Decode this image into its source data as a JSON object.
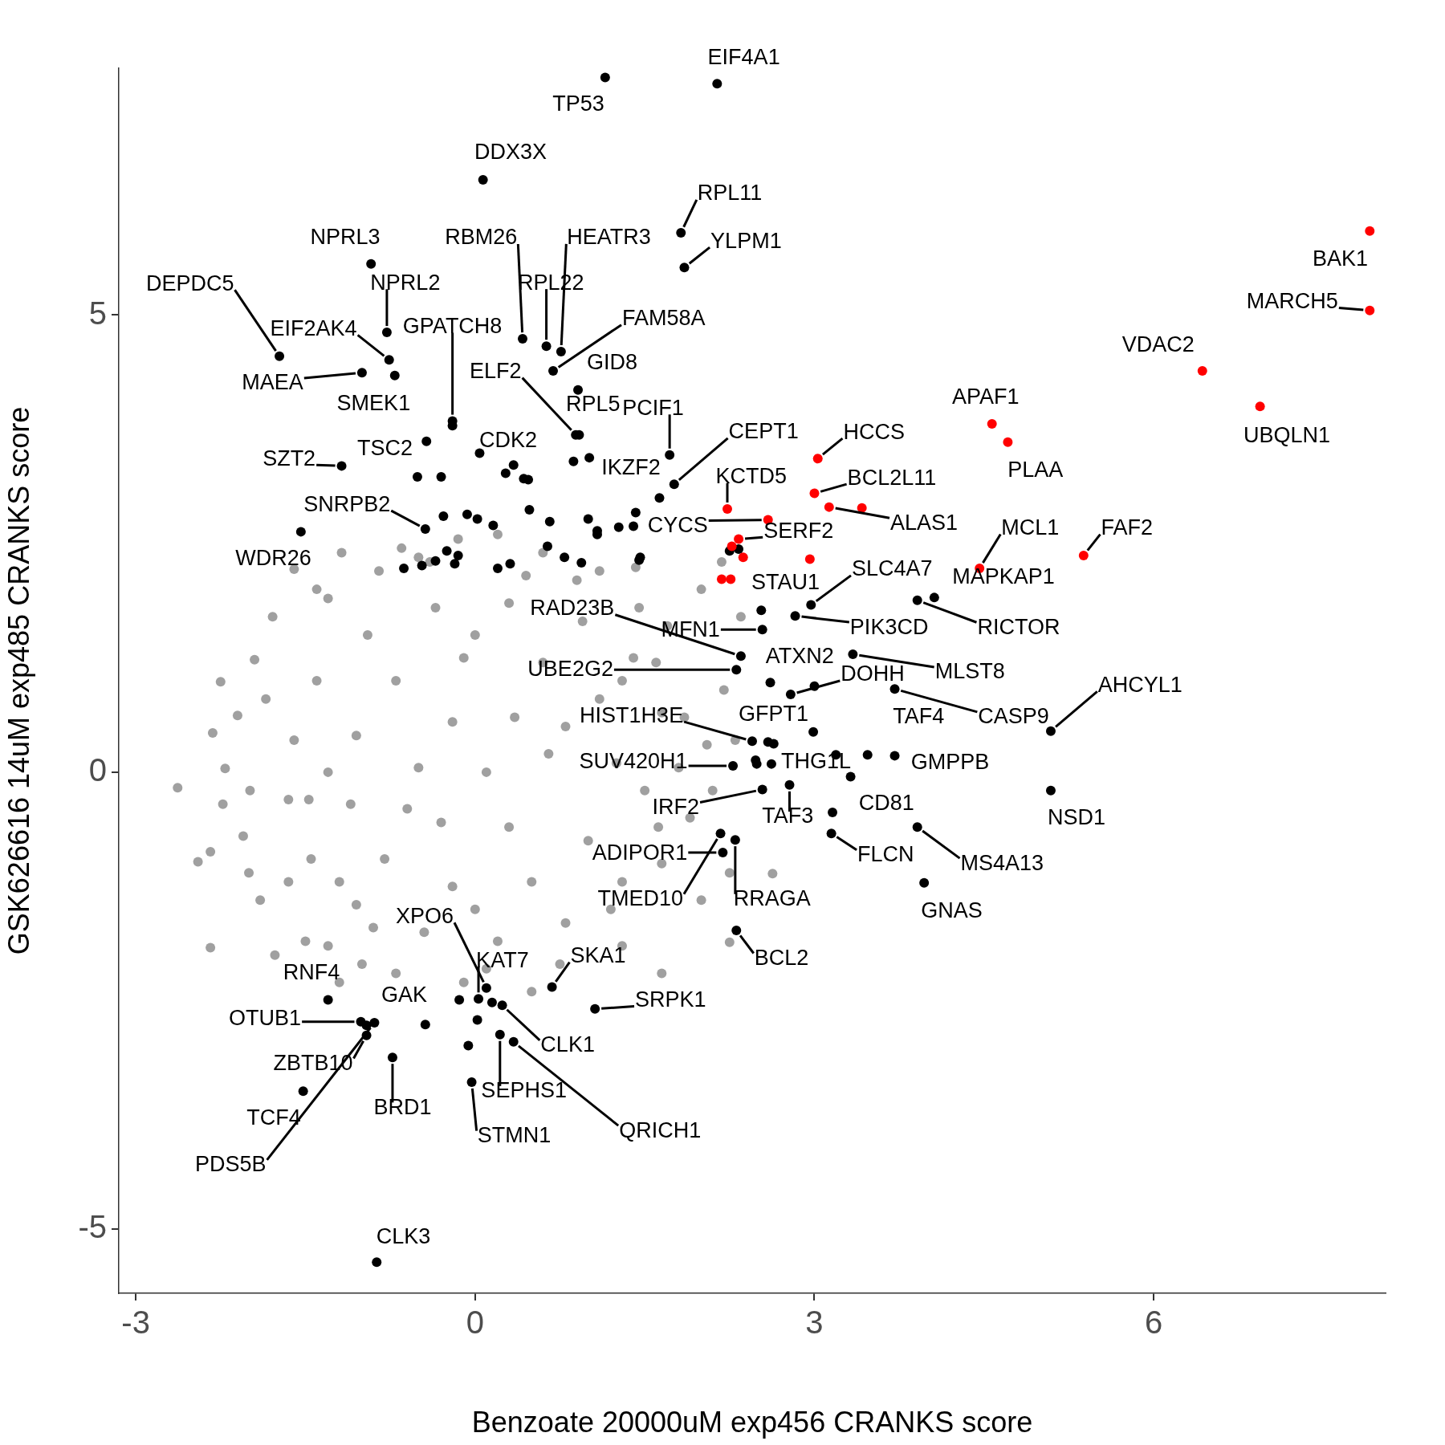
{
  "chart_data": {
    "type": "scatter",
    "xlabel": "Benzoate 20000uM exp456 CRANKS score",
    "ylabel": "GSK626616 14uM exp485 CRANKS score",
    "xlim": [
      -3.15,
      8.05
    ],
    "ylim": [
      -5.7,
      7.7
    ],
    "xticks": [
      -3,
      0,
      3,
      6
    ],
    "yticks": [
      -5,
      0,
      5
    ],
    "grid": false,
    "legend": false,
    "marker": "circle",
    "series": [
      {
        "color": "#a0a0a0",
        "x": [
          -2.63,
          -2.45,
          -2.34,
          -2.34,
          -2.25,
          -2.21,
          -2.23,
          -2.1,
          -2.05,
          -1.95,
          -1.85,
          -1.9,
          -1.79,
          -1.77,
          -1.6,
          -1.5,
          -1.47,
          -1.3,
          -1.4,
          -1.2,
          -1.18,
          -1.0,
          -0.85,
          -0.7,
          -0.65,
          -0.5,
          -0.15,
          -0.1,
          0.2,
          0.45,
          0.5,
          0.75,
          0.9,
          1.1,
          1.2,
          1.45,
          1.6,
          1.65,
          1.65,
          1.85,
          1.9,
          2.05,
          2.1,
          2.25,
          2.25,
          2.3,
          2.35,
          2.63,
          1.42,
          2.18,
          2.0,
          -2.32,
          -1.99,
          -1.65,
          -2.0,
          -1.3,
          0.1,
          -0.4,
          1.3,
          2.0,
          2.2,
          1.7,
          0.6,
          -0.9,
          1.8,
          1.65,
          1.4,
          0.95,
          0.3,
          -0.35,
          -0.95,
          -1.4,
          -1.6,
          -1.65,
          -1.45,
          -1.05,
          -0.45,
          0.2,
          0.8,
          1.3,
          1.62,
          1.25,
          1.1,
          0.6,
          -0.1,
          -0.7,
          -1.05,
          -1.1,
          -0.8,
          -0.2,
          0.5,
          1.0,
          0.65,
          0.35,
          -0.2,
          -0.5,
          -0.3,
          0.3,
          0.1,
          1.5,
          -1.3,
          0.0,
          0.0,
          0.8,
          -0.6,
          1.3,
          -1.2
        ],
        "values": [
          -0.17,
          -0.98,
          -0.87,
          -1.92,
          0.99,
          0.04,
          -0.35,
          0.62,
          -0.7,
          1.23,
          0.8,
          -1.4,
          1.7,
          -2.0,
          2.22,
          -1.85,
          -0.3,
          1.9,
          2.0,
          -2.3,
          2.4,
          -2.1,
          2.2,
          -2.2,
          2.45,
          2.35,
          2.55,
          -2.3,
          2.6,
          2.15,
          -2.4,
          -2.1,
          2.1,
          2.2,
          -1.5,
          1.8,
          1.2,
          -1.0,
          -2.2,
          0.6,
          -0.5,
          0.3,
          -0.2,
          -1.1,
          -1.86,
          0.35,
          1.7,
          -1.11,
          2.24,
          2.3,
          2.0,
          0.43,
          -0.2,
          -1.2,
          -1.1,
          -1.9,
          -2.15,
          2.3,
          -1.9,
          -1.4,
          0.9,
          1.6,
          2.4,
          -1.7,
          0.05,
          0.65,
          1.25,
          1.65,
          1.85,
          1.8,
          1.5,
          1.0,
          0.35,
          -0.3,
          -0.95,
          -1.45,
          -1.75,
          -1.85,
          -1.65,
          -1.2,
          -0.6,
          0.1,
          0.8,
          1.2,
          1.25,
          1.0,
          0.4,
          -0.35,
          -0.95,
          -1.25,
          -1.2,
          -0.75,
          0.2,
          0.6,
          0.55,
          0.05,
          -0.55,
          -0.6,
          0.0,
          -0.2,
          0.0,
          -1.5,
          1.5,
          0.5,
          -0.4,
          1.0,
          -1.2
        ]
      },
      {
        "color": "#000000",
        "x": [
          1.15,
          2.14,
          0.07,
          1.82,
          1.85,
          -0.92,
          -0.78,
          -1.73,
          -1.0,
          -0.76,
          -0.71,
          0.42,
          0.63,
          0.76,
          0.69,
          0.91,
          -0.2,
          -0.2,
          -0.43,
          -1.18,
          0.04,
          0.89,
          0.92,
          0.87,
          1.01,
          1.72,
          -0.51,
          -0.3,
          0.27,
          0.34,
          0.43,
          0.47,
          1.63,
          1.76,
          -1.54,
          -0.44,
          -0.28,
          -0.07,
          0.02,
          0.16,
          0.48,
          0.66,
          1.0,
          1.08,
          1.08,
          1.27,
          1.42,
          1.4,
          -0.63,
          -0.47,
          -0.35,
          -0.25,
          -0.15,
          -0.18,
          0.2,
          0.31,
          0.64,
          0.79,
          0.94,
          1.46,
          1.45,
          2.25,
          2.33,
          3.91,
          4.06,
          2.97,
          2.53,
          2.83,
          2.54,
          2.35,
          2.31,
          2.61,
          2.79,
          3.0,
          3.34,
          3.71,
          2.99,
          5.09,
          2.45,
          2.59,
          2.64,
          3.19,
          3.47,
          3.71,
          3.32,
          2.28,
          2.48,
          2.49,
          2.62,
          2.54,
          2.78,
          5.09,
          3.16,
          3.15,
          3.91,
          3.97,
          2.17,
          2.19,
          2.3,
          2.31,
          -1.3,
          -1.01,
          -0.96,
          -0.89,
          -0.96,
          -0.44,
          -0.73,
          -1.52,
          -0.14,
          0.03,
          0.1,
          0.15,
          0.24,
          0.02,
          -0.06,
          0.22,
          0.34,
          0.68,
          1.06,
          -0.03,
          -0.87
        ],
        "values": [
          7.6,
          7.53,
          6.48,
          5.9,
          5.52,
          5.56,
          4.81,
          4.55,
          4.37,
          4.51,
          4.34,
          4.74,
          4.66,
          4.6,
          4.39,
          4.18,
          3.84,
          3.79,
          3.62,
          3.35,
          3.49,
          3.69,
          3.69,
          3.4,
          3.44,
          3.47,
          3.23,
          3.23,
          3.27,
          3.36,
          3.21,
          3.2,
          3.0,
          3.15,
          2.63,
          2.66,
          2.8,
          2.82,
          2.77,
          2.7,
          2.87,
          2.74,
          2.77,
          2.6,
          2.64,
          2.68,
          2.84,
          2.69,
          2.23,
          2.26,
          2.31,
          2.42,
          2.37,
          2.28,
          2.23,
          2.28,
          2.47,
          2.35,
          2.29,
          2.35,
          2.32,
          2.42,
          2.44,
          1.88,
          1.91,
          1.83,
          1.77,
          1.71,
          1.56,
          1.27,
          1.12,
          0.98,
          0.85,
          0.94,
          1.29,
          0.91,
          0.44,
          0.45,
          0.34,
          0.33,
          0.31,
          0.19,
          0.19,
          0.18,
          -0.05,
          0.07,
          0.13,
          0.09,
          0.09,
          -0.19,
          -0.14,
          -0.2,
          -0.44,
          -0.67,
          -0.6,
          -1.21,
          -0.67,
          -0.88,
          -0.74,
          -1.73,
          -2.49,
          -2.73,
          -2.77,
          -2.74,
          -2.88,
          -2.76,
          -3.12,
          -3.49,
          -2.49,
          -2.48,
          -2.36,
          -2.52,
          -2.55,
          -2.71,
          -2.99,
          -2.87,
          -2.95,
          -2.35,
          -2.59,
          -3.39,
          -5.36
        ]
      },
      {
        "color": "#ff0000",
        "x": [
          7.91,
          7.91,
          6.43,
          6.94,
          4.57,
          4.71,
          5.38,
          4.46,
          3.03,
          3.0,
          3.13,
          3.42,
          2.23,
          2.59,
          2.33,
          2.27,
          2.37,
          2.96,
          2.18,
          2.26
        ],
        "values": [
          5.92,
          5.05,
          4.39,
          4.0,
          3.81,
          3.61,
          2.37,
          2.23,
          3.43,
          3.05,
          2.9,
          2.89,
          2.88,
          2.76,
          2.55,
          2.47,
          2.35,
          2.33,
          2.11,
          2.11
        ]
      }
    ],
    "annotations": [
      {
        "text": "EIF4A1",
        "x": 2.14,
        "y": 7.53
      },
      {
        "text": "TP53",
        "x": 1.15,
        "y": 7.6
      },
      {
        "text": "DDX3X",
        "x": 0.07,
        "y": 6.48
      },
      {
        "text": "RPL11",
        "x": 1.82,
        "y": 5.9
      },
      {
        "text": "YLPM1",
        "x": 1.85,
        "y": 5.52
      },
      {
        "text": "NPRL3",
        "x": -0.92,
        "y": 5.56
      },
      {
        "text": "RBM26",
        "x": 0.42,
        "y": 4.74
      },
      {
        "text": "HEATR3",
        "x": 0.76,
        "y": 4.6
      },
      {
        "text": "DEPDC5",
        "x": -1.73,
        "y": 4.55
      },
      {
        "text": "NPRL2",
        "x": -0.78,
        "y": 4.81
      },
      {
        "text": "RPL22",
        "x": 0.63,
        "y": 4.66
      },
      {
        "text": "FAM58A",
        "x": 0.69,
        "y": 4.39
      },
      {
        "text": "EIF2AK4",
        "x": -0.76,
        "y": 4.51
      },
      {
        "text": "GPATCH8",
        "x": -0.2,
        "y": 3.84
      },
      {
        "text": "GID8",
        "x": 0.91,
        "y": 4.18
      },
      {
        "text": "ELF2",
        "x": 0.89,
        "y": 3.69
      },
      {
        "text": "MAEA",
        "x": -1.0,
        "y": 4.37
      },
      {
        "text": "SMEK1",
        "x": -0.71,
        "y": 4.34
      },
      {
        "text": "RPL5",
        "x": 0.92,
        "y": 3.69
      },
      {
        "text": "PCIF1",
        "x": 1.72,
        "y": 3.47
      },
      {
        "text": "CEPT1",
        "x": 1.76,
        "y": 3.15
      },
      {
        "text": "HCCS",
        "x": 3.03,
        "y": 3.43
      },
      {
        "text": "CDK2",
        "x": 0.04,
        "y": 3.49
      },
      {
        "text": "TSC2",
        "x": -0.43,
        "y": 3.62
      },
      {
        "text": "SZT2",
        "x": -1.18,
        "y": 3.35
      },
      {
        "text": "IKZF2",
        "x": 1.63,
        "y": 3.0
      },
      {
        "text": "KCTD5",
        "x": 2.23,
        "y": 2.88
      },
      {
        "text": "BCL2L11",
        "x": 3.0,
        "y": 3.05
      },
      {
        "text": "SNRPB2",
        "x": -0.44,
        "y": 2.66
      },
      {
        "text": "ALAS1",
        "x": 3.13,
        "y": 2.9
      },
      {
        "text": "CYCS",
        "x": 2.59,
        "y": 2.76
      },
      {
        "text": "SERF2",
        "x": 2.33,
        "y": 2.55
      },
      {
        "text": "MCL1",
        "x": 4.46,
        "y": 2.23
      },
      {
        "text": "FAF2",
        "x": 5.38,
        "y": 2.37
      },
      {
        "text": "WDR26",
        "x": -1.54,
        "y": 2.63
      },
      {
        "text": "SLC4A7",
        "x": 2.97,
        "y": 1.83
      },
      {
        "text": "MAPKAP1",
        "x": 4.06,
        "y": 1.91
      },
      {
        "text": "STAU1",
        "x": 2.37,
        "y": 2.35
      },
      {
        "text": "RAD23B",
        "x": 2.35,
        "y": 1.27
      },
      {
        "text": "RICTOR",
        "x": 3.91,
        "y": 1.88
      },
      {
        "text": "PIK3CD",
        "x": 2.83,
        "y": 1.71
      },
      {
        "text": "MFN1",
        "x": 2.54,
        "y": 1.56
      },
      {
        "text": "ATXN2",
        "x": 2.61,
        "y": 0.98
      },
      {
        "text": "DOHH",
        "x": 2.79,
        "y": 0.85
      },
      {
        "text": "MLST8",
        "x": 3.34,
        "y": 1.29
      },
      {
        "text": "UBE2G2",
        "x": 2.31,
        "y": 1.12
      },
      {
        "text": "AHCYL1",
        "x": 5.09,
        "y": 0.45
      },
      {
        "text": "HIST1H3E",
        "x": 2.45,
        "y": 0.34
      },
      {
        "text": "GFPT1",
        "x": 2.59,
        "y": 0.33
      },
      {
        "text": "TAF4",
        "x": 3.71,
        "y": 0.91
      },
      {
        "text": "CASP9",
        "x": 3.71,
        "y": 0.91
      },
      {
        "text": "SUV420H1",
        "x": 2.28,
        "y": 0.07
      },
      {
        "text": "THG1L",
        "x": 2.64,
        "y": 0.31
      },
      {
        "text": "GMPPB",
        "x": 3.71,
        "y": 0.18
      },
      {
        "text": "IRF2",
        "x": 2.54,
        "y": -0.19
      },
      {
        "text": "CD81",
        "x": 3.32,
        "y": -0.05
      },
      {
        "text": "TAF3",
        "x": 2.78,
        "y": -0.14
      },
      {
        "text": "NSD1",
        "x": 5.09,
        "y": -0.2
      },
      {
        "text": "ADIPOR1",
        "x": 2.19,
        "y": -0.88
      },
      {
        "text": "FLCN",
        "x": 3.15,
        "y": -0.67
      },
      {
        "text": "MS4A13",
        "x": 3.91,
        "y": -0.6
      },
      {
        "text": "RRAGA",
        "x": 2.3,
        "y": -0.74
      },
      {
        "text": "TMED10",
        "x": 2.17,
        "y": -0.67
      },
      {
        "text": "GNAS",
        "x": 3.97,
        "y": -1.21
      },
      {
        "text": "XPO6",
        "x": 0.1,
        "y": -2.36
      },
      {
        "text": "SKA1",
        "x": 0.68,
        "y": -2.35
      },
      {
        "text": "BCL2",
        "x": 2.31,
        "y": -1.73
      },
      {
        "text": "KAT7",
        "x": 0.03,
        "y": -2.48
      },
      {
        "text": "RNF4",
        "x": -1.3,
        "y": -2.49
      },
      {
        "text": "GAK",
        "x": -0.44,
        "y": -2.76
      },
      {
        "text": "SRPK1",
        "x": 1.06,
        "y": -2.59
      },
      {
        "text": "OTUB1",
        "x": -1.01,
        "y": -2.73
      },
      {
        "text": "CLK1",
        "x": 0.24,
        "y": -2.55
      },
      {
        "text": "ZBTB10",
        "x": -0.96,
        "y": -2.88
      },
      {
        "text": "SEPHS1",
        "x": 0.22,
        "y": -2.87
      },
      {
        "text": "BRD1",
        "x": -0.73,
        "y": -3.12
      },
      {
        "text": "TCF4",
        "x": -1.52,
        "y": -3.49
      },
      {
        "text": "QRICH1",
        "x": 0.34,
        "y": -2.95
      },
      {
        "text": "STMN1",
        "x": -0.03,
        "y": -3.39
      },
      {
        "text": "PDS5B",
        "x": -0.89,
        "y": -2.74
      },
      {
        "text": "CLK3",
        "x": -0.87,
        "y": -5.36
      },
      {
        "text": "BAK1",
        "x": 7.91,
        "y": 5.92
      },
      {
        "text": "MARCH5",
        "x": 7.91,
        "y": 5.05
      },
      {
        "text": "VDAC2",
        "x": 6.43,
        "y": 4.39
      },
      {
        "text": "UBQLN1",
        "x": 6.94,
        "y": 4.0
      },
      {
        "text": "APAF1",
        "x": 4.57,
        "y": 3.81
      },
      {
        "text": "PLAA",
        "x": 4.71,
        "y": 3.61
      }
    ]
  }
}
